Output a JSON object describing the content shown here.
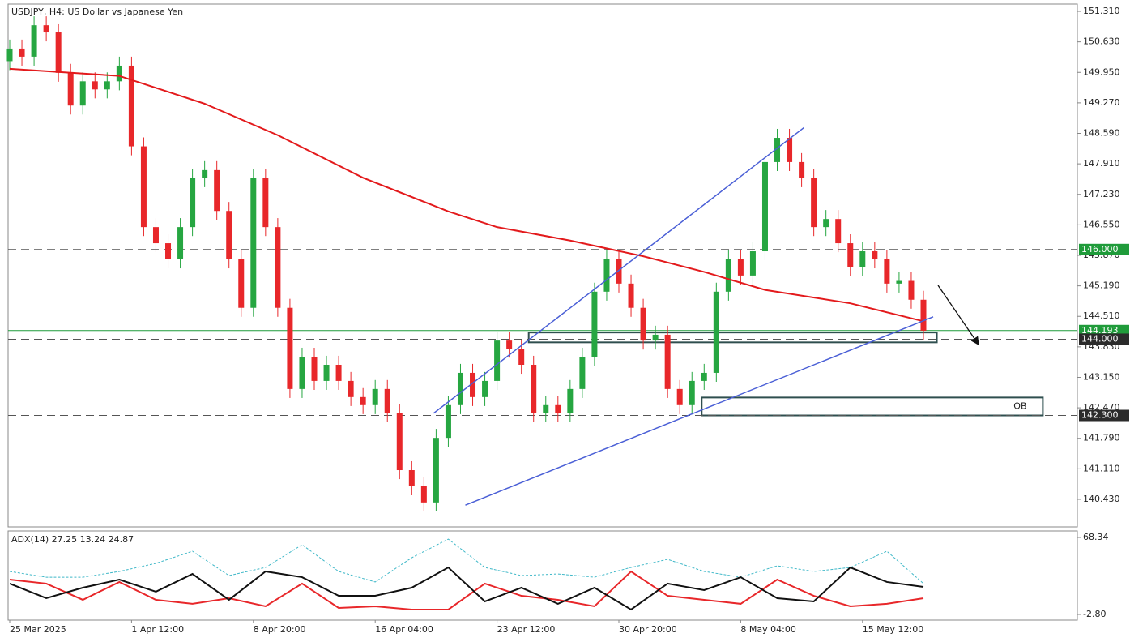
{
  "chart_data": [
    {
      "type": "candlestick",
      "title": "USDJPY, H4:  US Dollar vs Japanese Yen",
      "categories": [
        "25 Mar 2025",
        null,
        null,
        null,
        null,
        null,
        null,
        null,
        null,
        null,
        "1 Apr 12:00",
        null,
        null,
        null,
        null,
        null,
        null,
        null,
        null,
        null,
        "8 Apr 20:00",
        null,
        null,
        null,
        null,
        null,
        null,
        null,
        null,
        null,
        "16 Apr 04:00",
        null,
        null,
        null,
        null,
        null,
        null,
        null,
        null,
        null,
        "23 Apr 12:00",
        null,
        null,
        null,
        null,
        null,
        null,
        null,
        null,
        null,
        "30 Apr 20:00",
        null,
        null,
        null,
        null,
        null,
        null,
        null,
        null,
        null,
        "8 May 04:00",
        null,
        null,
        null,
        null,
        null,
        null,
        null,
        null,
        null,
        "15 May 12:00",
        null,
        null,
        null,
        null,
        null
      ],
      "open": [
        150.2,
        150.48,
        150.3,
        151.0,
        150.84,
        149.94,
        149.21,
        149.75,
        149.57,
        149.75,
        150.1,
        148.3,
        146.5,
        146.14,
        145.78,
        146.5,
        147.59,
        147.77,
        146.86,
        145.78,
        144.7,
        147.59,
        146.5,
        144.7,
        142.89,
        143.61,
        143.07,
        143.43,
        143.07,
        142.71,
        142.53,
        142.89,
        142.35,
        141.08,
        140.72,
        140.36,
        141.8,
        142.53,
        143.25,
        142.71,
        143.07,
        143.97,
        143.79,
        143.43,
        142.35,
        142.53,
        142.35,
        142.89,
        143.61,
        145.06,
        145.78,
        145.24,
        144.7,
        143.97,
        144.1,
        142.89,
        142.53,
        143.07,
        143.25,
        145.06,
        145.78,
        145.42,
        145.96,
        147.95,
        148.49,
        147.95,
        147.59,
        146.5,
        146.68,
        146.14,
        145.6,
        145.96,
        145.78,
        145.24,
        145.3,
        144.88
      ],
      "high": [
        150.68,
        150.68,
        151.2,
        151.2,
        151.04,
        150.14,
        149.95,
        149.95,
        149.95,
        150.3,
        150.3,
        148.5,
        146.7,
        146.34,
        146.7,
        147.79,
        147.97,
        147.97,
        147.06,
        145.98,
        147.79,
        147.79,
        146.7,
        144.9,
        143.81,
        143.81,
        143.63,
        143.63,
        143.27,
        142.91,
        143.09,
        143.09,
        142.55,
        141.28,
        140.92,
        142.0,
        142.73,
        143.45,
        143.45,
        143.27,
        144.17,
        144.17,
        143.99,
        143.63,
        142.73,
        142.73,
        143.09,
        143.81,
        145.26,
        145.98,
        145.98,
        145.44,
        144.9,
        144.3,
        144.3,
        143.09,
        143.27,
        143.45,
        145.26,
        145.98,
        145.98,
        146.16,
        148.15,
        148.69,
        148.69,
        148.15,
        147.79,
        146.88,
        146.88,
        146.34,
        146.16,
        146.16,
        145.98,
        145.5,
        145.5,
        145.08
      ],
      "low": [
        150.0,
        150.1,
        150.1,
        150.64,
        149.74,
        149.01,
        149.01,
        149.37,
        149.37,
        149.55,
        148.1,
        146.3,
        145.94,
        145.58,
        145.58,
        146.3,
        147.39,
        146.66,
        145.58,
        144.5,
        144.5,
        146.3,
        144.5,
        142.69,
        142.69,
        142.87,
        142.87,
        142.87,
        142.51,
        142.33,
        142.33,
        142.15,
        140.88,
        140.52,
        140.16,
        140.16,
        141.6,
        142.33,
        142.51,
        142.51,
        142.87,
        143.59,
        143.23,
        142.15,
        142.15,
        142.15,
        142.15,
        142.69,
        143.41,
        144.86,
        145.04,
        144.5,
        143.77,
        143.77,
        142.69,
        142.33,
        142.33,
        142.87,
        143.05,
        144.86,
        145.22,
        145.22,
        145.76,
        147.75,
        147.75,
        147.39,
        146.3,
        146.3,
        145.94,
        145.4,
        145.4,
        145.58,
        145.04,
        145.04,
        144.68,
        143.99
      ],
      "close": [
        150.48,
        150.3,
        151.0,
        150.84,
        149.94,
        149.21,
        149.75,
        149.57,
        149.75,
        150.1,
        148.3,
        146.5,
        146.14,
        145.78,
        146.5,
        147.59,
        147.77,
        146.86,
        145.78,
        144.7,
        147.59,
        146.5,
        144.7,
        142.89,
        143.61,
        143.07,
        143.43,
        143.07,
        142.71,
        142.53,
        142.89,
        142.35,
        141.08,
        140.72,
        140.36,
        141.8,
        142.53,
        143.25,
        142.71,
        143.07,
        143.97,
        143.79,
        143.43,
        142.35,
        142.53,
        142.35,
        142.89,
        143.61,
        145.06,
        145.78,
        145.24,
        144.7,
        143.97,
        144.1,
        142.89,
        142.53,
        143.07,
        143.25,
        145.06,
        145.78,
        145.42,
        145.96,
        147.95,
        148.49,
        147.95,
        147.59,
        146.5,
        146.68,
        146.14,
        145.6,
        145.96,
        145.78,
        145.24,
        145.3,
        144.88,
        144.19
      ],
      "up_color": "#26a641",
      "down_color": "#e8272a",
      "ylim": [
        139.815,
        151.473
      ],
      "yticks": [
        {
          "value": 151.31,
          "label": "151.310"
        },
        {
          "value": 150.63,
          "label": "150.630"
        },
        {
          "value": 149.95,
          "label": "149.950"
        },
        {
          "value": 149.27,
          "label": "149.270"
        },
        {
          "value": 148.59,
          "label": "148.590"
        },
        {
          "value": 147.91,
          "label": "147.910"
        },
        {
          "value": 147.23,
          "label": "147.230"
        },
        {
          "value": 146.55,
          "label": "146.550"
        },
        {
          "value": 145.87,
          "label": "145.870"
        },
        {
          "value": 145.19,
          "label": "145.190"
        },
        {
          "value": 144.51,
          "label": "144.510"
        },
        {
          "value": 143.83,
          "label": "143.830"
        },
        {
          "value": 143.15,
          "label": "143.150"
        },
        {
          "value": 142.47,
          "label": "142.470"
        },
        {
          "value": 141.79,
          "label": "141.790"
        },
        {
          "value": 141.11,
          "label": "141.110"
        },
        {
          "value": 140.43,
          "label": "140.430"
        }
      ],
      "overlays": [
        {
          "color": "#e31a1c",
          "line_width": 2,
          "x": [
            0,
            9,
            16,
            22,
            29,
            36,
            40,
            46,
            52,
            57,
            62,
            69,
            75
          ],
          "values": [
            150.03,
            149.87,
            149.25,
            148.55,
            147.6,
            146.85,
            146.5,
            146.2,
            145.85,
            145.5,
            145.1,
            144.8,
            144.4
          ]
        },
        {
          "color": "#4a5fd6",
          "line_width": 1.5,
          "x": [
            34.8,
            65.2
          ],
          "values": [
            142.35,
            148.72
          ]
        },
        {
          "color": "#4a5fd6",
          "line_width": 1.5,
          "x": [
            37.4,
            75.8
          ],
          "values": [
            140.3,
            144.5
          ]
        }
      ],
      "levels": [
        {
          "value": 146.0,
          "label": "146.000",
          "color": "#1f9b3a",
          "dashed": true
        },
        {
          "value": 144.193,
          "label": "144.193",
          "color": "#1f9b3a",
          "dashed": false
        },
        {
          "value": 144.0,
          "label": "144.000",
          "color": "#2b2b2b",
          "dashed": true
        },
        {
          "value": 142.3,
          "label": "142.300",
          "color": "#2b2b2b",
          "dashed": true
        }
      ],
      "zones": [
        {
          "x": [
            42.6,
            76.1
          ],
          "values": [
            143.93,
            144.15
          ],
          "color": "#2f4f4f"
        },
        {
          "label": "OB",
          "x": [
            56.8,
            84.8
          ],
          "values": [
            142.3,
            142.7
          ],
          "color": "#2f4f4f"
        }
      ]
    },
    {
      "type": "line",
      "title": "ADX(14) 27.25 13.24 24.87",
      "x": [
        0,
        3,
        6,
        9,
        12,
        15,
        18,
        21,
        24,
        27,
        30,
        33,
        36,
        39,
        42,
        45,
        48,
        51,
        54,
        57,
        60,
        63,
        66,
        69,
        72,
        75
      ],
      "ylim": [
        -8.04,
        74.33
      ],
      "yticks": [
        68.34,
        {
          "value": -2.8,
          "label": "-2.80"
        }
      ],
      "series": [
        {
          "color": "#3fb8c8",
          "dashed": true,
          "line_width": 1,
          "values": [
            36.9,
            31.6,
            31.6,
            36.9,
            44.4,
            55.6,
            33.1,
            40.6,
            61.6,
            36.9,
            27.2,
            49.6,
            66.8,
            40.6,
            33.1,
            34.6,
            31.6,
            40.6,
            48.1,
            36.9,
            31.6,
            42.1,
            36.9,
            40.6,
            55.6,
            25.7
          ]
        },
        {
          "color": "#e8272a",
          "dashed": false,
          "line_width": 2,
          "values": [
            29.4,
            25.7,
            10.7,
            27.2,
            10.7,
            7.0,
            12.2,
            4.7,
            25.7,
            3.2,
            4.7,
            1.7,
            1.7,
            25.7,
            14.4,
            10.7,
            4.7,
            36.9,
            14.4,
            10.7,
            7.0,
            29.4,
            14.4,
            4.7,
            7.0,
            12.2
          ]
        },
        {
          "color": "#111111",
          "dashed": false,
          "line_width": 2,
          "values": [
            25.7,
            12.2,
            21.9,
            29.4,
            18.2,
            34.6,
            10.7,
            36.9,
            31.6,
            14.4,
            14.4,
            21.9,
            40.6,
            9.2,
            21.9,
            7.0,
            21.9,
            1.7,
            25.7,
            19.7,
            31.6,
            12.2,
            9.2,
            40.6,
            27.2,
            22.7
          ]
        }
      ]
    }
  ]
}
